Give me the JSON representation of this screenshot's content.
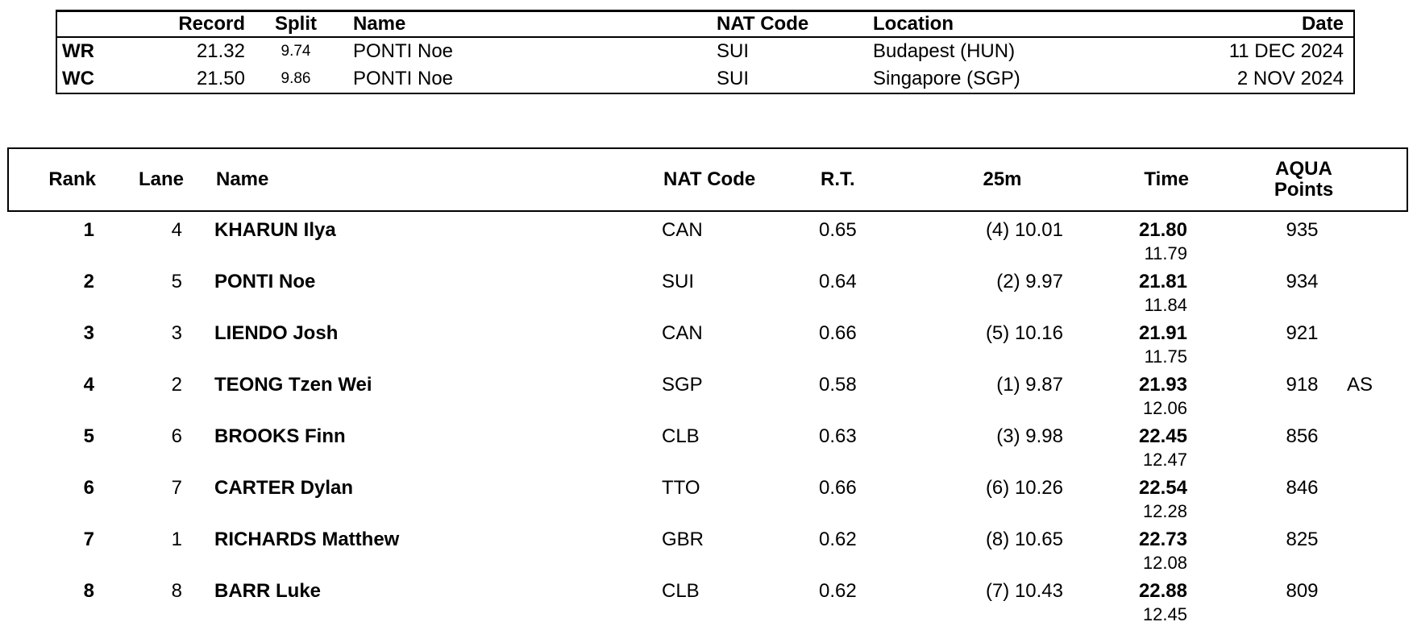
{
  "colors": {
    "background": "#ffffff",
    "text": "#000000",
    "border": "#000000"
  },
  "records": {
    "headers": {
      "record": "Record",
      "split": "Split",
      "name": "Name",
      "nat": "NAT Code",
      "location": "Location",
      "date": "Date"
    },
    "rows": [
      {
        "code": "WR",
        "record": "21.32",
        "split": "9.74",
        "name": "PONTI Noe",
        "nat": "SUI",
        "location": "Budapest (HUN)",
        "date": "11 DEC 2024"
      },
      {
        "code": "WC",
        "record": "21.50",
        "split": "9.86",
        "name": "PONTI Noe",
        "nat": "SUI",
        "location": "Singapore (SGP)",
        "date": "2 NOV 2024"
      }
    ]
  },
  "results": {
    "headers": {
      "rank": "Rank",
      "lane": "Lane",
      "name": "Name",
      "nat": "NAT Code",
      "rt": "R.T.",
      "m25": "25m",
      "time": "Time",
      "points_line1": "AQUA",
      "points_line2": "Points"
    },
    "rows": [
      {
        "rank": "1",
        "lane": "4",
        "name": "KHARUN Ilya",
        "nat": "CAN",
        "rt": "0.65",
        "m25": "(4) 10.01",
        "time": "21.80",
        "split2": "11.79",
        "points": "935",
        "note": ""
      },
      {
        "rank": "2",
        "lane": "5",
        "name": "PONTI Noe",
        "nat": "SUI",
        "rt": "0.64",
        "m25": "(2) 9.97",
        "time": "21.81",
        "split2": "11.84",
        "points": "934",
        "note": ""
      },
      {
        "rank": "3",
        "lane": "3",
        "name": "LIENDO Josh",
        "nat": "CAN",
        "rt": "0.66",
        "m25": "(5) 10.16",
        "time": "21.91",
        "split2": "11.75",
        "points": "921",
        "note": ""
      },
      {
        "rank": "4",
        "lane": "2",
        "name": "TEONG Tzen Wei",
        "nat": "SGP",
        "rt": "0.58",
        "m25": "(1) 9.87",
        "time": "21.93",
        "split2": "12.06",
        "points": "918",
        "note": "AS"
      },
      {
        "rank": "5",
        "lane": "6",
        "name": "BROOKS Finn",
        "nat": "CLB",
        "rt": "0.63",
        "m25": "(3) 9.98",
        "time": "22.45",
        "split2": "12.47",
        "points": "856",
        "note": ""
      },
      {
        "rank": "6",
        "lane": "7",
        "name": "CARTER Dylan",
        "nat": "TTO",
        "rt": "0.66",
        "m25": "(6) 10.26",
        "time": "22.54",
        "split2": "12.28",
        "points": "846",
        "note": ""
      },
      {
        "rank": "7",
        "lane": "1",
        "name": "RICHARDS Matthew",
        "nat": "GBR",
        "rt": "0.62",
        "m25": "(8) 10.65",
        "time": "22.73",
        "split2": "12.08",
        "points": "825",
        "note": ""
      },
      {
        "rank": "8",
        "lane": "8",
        "name": "BARR Luke",
        "nat": "CLB",
        "rt": "0.62",
        "m25": "(7) 10.43",
        "time": "22.88",
        "split2": "12.45",
        "points": "809",
        "note": ""
      }
    ]
  }
}
